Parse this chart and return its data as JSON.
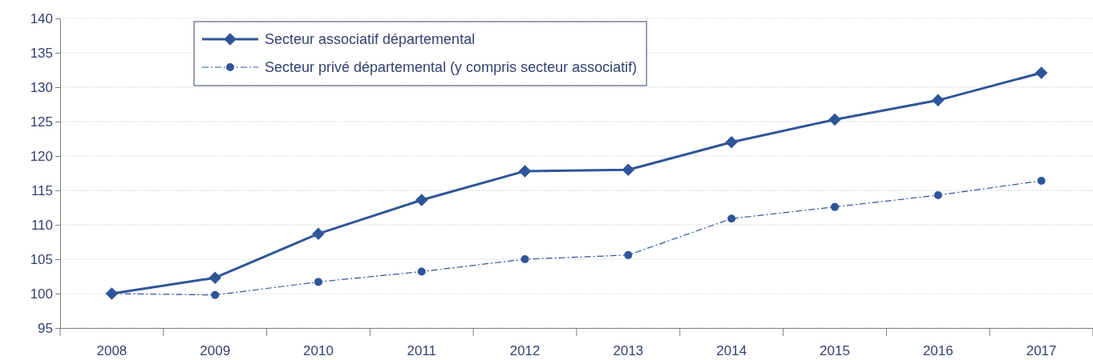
{
  "chart_data": {
    "type": "line",
    "categories": [
      "2008",
      "2009",
      "2010",
      "2011",
      "2012",
      "2013",
      "2014",
      "2015",
      "2016",
      "2017"
    ],
    "series": [
      {
        "name": "Secteur associatif départemental",
        "color": "#2e5597",
        "marker": "diamond",
        "line_style": "solid",
        "values": [
          100,
          102.3,
          108.7,
          113.6,
          117.8,
          118.0,
          122.0,
          125.3,
          128.1,
          132.1
        ]
      },
      {
        "name": "Secteur privé départemental (y compris secteur associatif)",
        "color": "#2e5597",
        "marker": "circle",
        "line_style": "dashed",
        "values": [
          100,
          99.8,
          101.7,
          103.2,
          105.0,
          105.6,
          110.9,
          112.6,
          114.3,
          116.4
        ]
      }
    ],
    "ylim": [
      95,
      140
    ],
    "yticks": [
      95,
      100,
      105,
      110,
      115,
      120,
      125,
      130,
      135,
      140
    ],
    "grid": "y",
    "legend": "top left"
  }
}
